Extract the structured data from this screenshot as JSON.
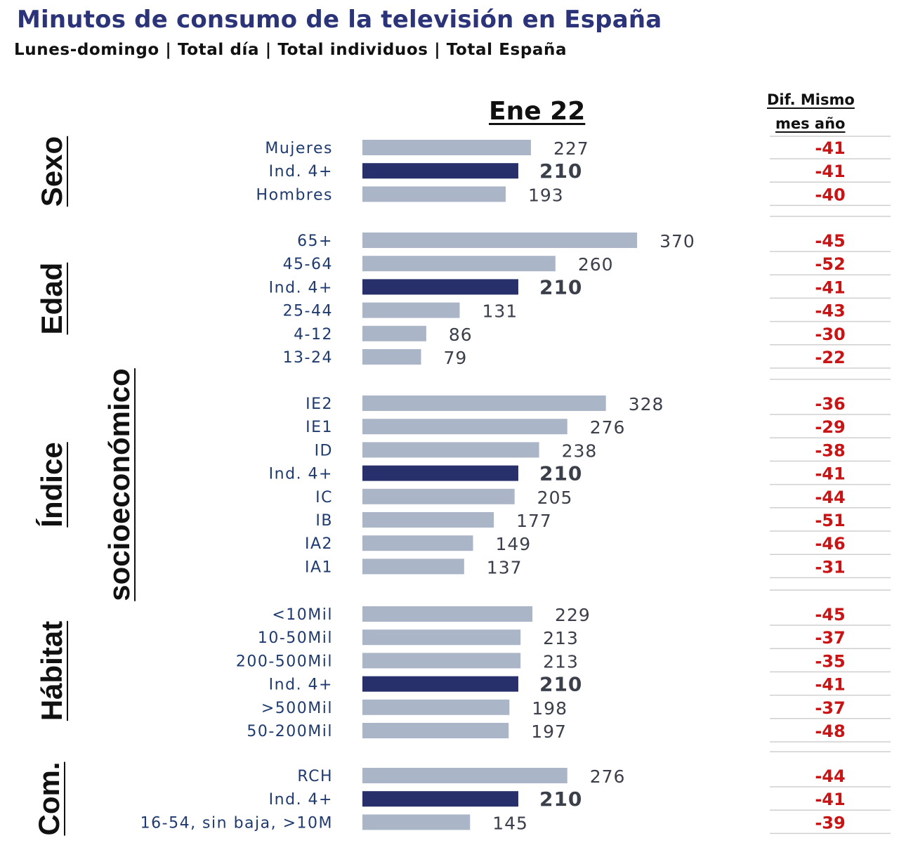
{
  "title": "Minutos de consumo de la televisión en España",
  "subtitle": "Lunes-domingo | Total día | Total individuos | Total España",
  "period": "Ene 22",
  "diff_header": {
    "line1": "Dif. Mismo",
    "line2": "mes año"
  },
  "colors": {
    "bar": "#abb5c8",
    "highlight_bar": "#27306a",
    "diff": "#c81414",
    "title": "#2b3478"
  },
  "chart_data": {
    "type": "bar",
    "orientation": "horizontal",
    "groups": [
      {
        "name": "Sexo",
        "rows": [
          {
            "label": "Mujeres",
            "value": 227,
            "diff": "-41"
          },
          {
            "label": "Ind. 4+",
            "value": 210,
            "diff": "-41",
            "highlight": true
          },
          {
            "label": "Hombres",
            "value": 193,
            "diff": "-40"
          }
        ]
      },
      {
        "name": "Edad",
        "rows": [
          {
            "label": "65+",
            "value": 370,
            "diff": "-45"
          },
          {
            "label": "45-64",
            "value": 260,
            "diff": "-52"
          },
          {
            "label": "Ind. 4+",
            "value": 210,
            "diff": "-41",
            "highlight": true
          },
          {
            "label": "25-44",
            "value": 131,
            "diff": "-43"
          },
          {
            "label": "4-12",
            "value": 86,
            "diff": "-30"
          },
          {
            "label": "13-24",
            "value": 79,
            "diff": "-22"
          }
        ]
      },
      {
        "name": "Índice socioeconómico",
        "rows": [
          {
            "label": "IE2",
            "value": 328,
            "diff": "-36"
          },
          {
            "label": "IE1",
            "value": 276,
            "diff": "-29"
          },
          {
            "label": "ID",
            "value": 238,
            "diff": "-38"
          },
          {
            "label": "Ind. 4+",
            "value": 210,
            "diff": "-41",
            "highlight": true
          },
          {
            "label": "IC",
            "value": 205,
            "diff": "-44"
          },
          {
            "label": "IB",
            "value": 177,
            "diff": "-51"
          },
          {
            "label": "IA2",
            "value": 149,
            "diff": "-46"
          },
          {
            "label": "IA1",
            "value": 137,
            "diff": "-31"
          }
        ]
      },
      {
        "name": "Hábitat",
        "rows": [
          {
            "label": "<10Mil",
            "value": 229,
            "diff": "-45"
          },
          {
            "label": "10-50Mil",
            "value": 213,
            "diff": "-37"
          },
          {
            "label": "200-500Mil",
            "value": 213,
            "diff": "-35"
          },
          {
            "label": "Ind. 4+",
            "value": 210,
            "diff": "-41",
            "highlight": true
          },
          {
            "label": ">500Mil",
            "value": 198,
            "diff": "-37"
          },
          {
            "label": "50-200Mil",
            "value": 197,
            "diff": "-48"
          }
        ]
      },
      {
        "name": "Com.",
        "rows": [
          {
            "label": "RCH",
            "value": 276,
            "diff": "-44"
          },
          {
            "label": "Ind. 4+",
            "value": 210,
            "diff": "-41",
            "highlight": true
          },
          {
            "label": "16-54, sin baja, >10M",
            "value": 145,
            "diff": "-39"
          }
        ]
      }
    ]
  }
}
